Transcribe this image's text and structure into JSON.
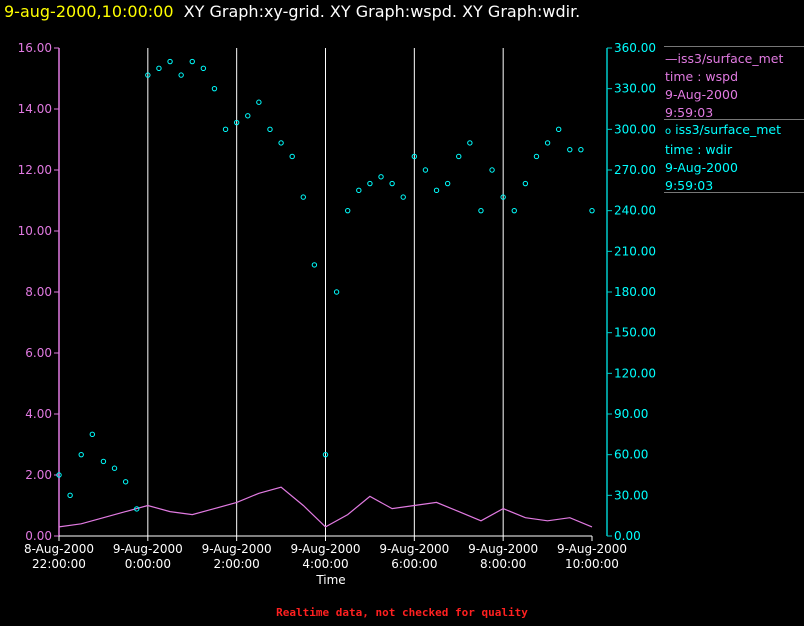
{
  "header": {
    "timestamp": "9-aug-2000,10:00:00",
    "graphs": "XY Graph:xy-grid.  XY Graph:wspd.  XY Graph:wdir."
  },
  "legend": {
    "wspd": {
      "name": "iss3/surface_met",
      "var": "time : wspd",
      "date": "9-Aug-2000",
      "time": "9:59:03"
    },
    "wdir": {
      "name": "iss3/surface_met",
      "var": "time : wdir",
      "date": "9-Aug-2000",
      "time": "9:59:03"
    }
  },
  "footnote": "Realtime data, not checked for quality",
  "chart_data": {
    "type": "scatter",
    "xlabel": "Time",
    "x_ticks": [
      {
        "date": "8-Aug-2000",
        "time": "22:00:00"
      },
      {
        "date": "9-Aug-2000",
        "time": "0:00:00"
      },
      {
        "date": "9-Aug-2000",
        "time": "2:00:00"
      },
      {
        "date": "9-Aug-2000",
        "time": "4:00:00"
      },
      {
        "date": "9-Aug-2000",
        "time": "6:00:00"
      },
      {
        "date": "9-Aug-2000",
        "time": "8:00:00"
      },
      {
        "date": "9-Aug-2000",
        "time": "10:00:00"
      }
    ],
    "xlim": [
      "2000-08-08T22:00:00",
      "2000-08-09T10:00:00"
    ],
    "grid_x": true,
    "y_left": {
      "ylim": [
        0,
        16
      ],
      "ticks": [
        "0.00",
        "2.00",
        "4.00",
        "6.00",
        "8.00",
        "10.00",
        "12.00",
        "14.00",
        "16.00"
      ]
    },
    "y_right": {
      "ylim": [
        0,
        360
      ],
      "ticks": [
        "0.00",
        "30.00",
        "60.00",
        "90.00",
        "120.00",
        "150.00",
        "180.00",
        "210.00",
        "240.00",
        "270.00",
        "300.00",
        "330.00",
        "360.00"
      ]
    },
    "series": [
      {
        "name": "time : wspd",
        "axis": "left",
        "style": "line",
        "color": "#e17ae1",
        "x": [
          "2000-08-08T22:00:00",
          "2000-08-08T22:30:00",
          "2000-08-08T23:00:00",
          "2000-08-08T23:30:00",
          "2000-08-09T00:00:00",
          "2000-08-09T00:30:00",
          "2000-08-09T01:00:00",
          "2000-08-09T01:30:00",
          "2000-08-09T02:00:00",
          "2000-08-09T02:30:00",
          "2000-08-09T03:00:00",
          "2000-08-09T03:30:00",
          "2000-08-09T04:00:00",
          "2000-08-09T04:30:00",
          "2000-08-09T05:00:00",
          "2000-08-09T05:30:00",
          "2000-08-09T06:00:00",
          "2000-08-09T06:30:00",
          "2000-08-09T07:00:00",
          "2000-08-09T07:30:00",
          "2000-08-09T08:00:00",
          "2000-08-09T08:30:00",
          "2000-08-09T09:00:00",
          "2000-08-09T09:30:00",
          "2000-08-09T10:00:00"
        ],
        "values": [
          0.3,
          0.4,
          0.6,
          0.8,
          1.0,
          0.8,
          0.7,
          0.9,
          1.1,
          1.4,
          1.6,
          1.0,
          0.3,
          0.7,
          1.3,
          0.9,
          1.0,
          1.1,
          0.8,
          0.5,
          0.9,
          0.6,
          0.5,
          0.6,
          0.3
        ]
      },
      {
        "name": "time : wdir",
        "axis": "right",
        "style": "points",
        "color": "#00ffff",
        "x": [
          "2000-08-08T22:00:00",
          "2000-08-08T22:15:00",
          "2000-08-08T22:30:00",
          "2000-08-08T22:45:00",
          "2000-08-08T23:00:00",
          "2000-08-08T23:15:00",
          "2000-08-08T23:30:00",
          "2000-08-08T23:45:00",
          "2000-08-09T00:00:00",
          "2000-08-09T00:15:00",
          "2000-08-09T00:30:00",
          "2000-08-09T00:45:00",
          "2000-08-09T01:00:00",
          "2000-08-09T01:15:00",
          "2000-08-09T01:30:00",
          "2000-08-09T01:45:00",
          "2000-08-09T02:00:00",
          "2000-08-09T02:15:00",
          "2000-08-09T02:30:00",
          "2000-08-09T02:45:00",
          "2000-08-09T03:00:00",
          "2000-08-09T03:15:00",
          "2000-08-09T03:30:00",
          "2000-08-09T03:45:00",
          "2000-08-09T04:00:00",
          "2000-08-09T04:15:00",
          "2000-08-09T04:30:00",
          "2000-08-09T04:45:00",
          "2000-08-09T05:00:00",
          "2000-08-09T05:15:00",
          "2000-08-09T05:30:00",
          "2000-08-09T05:45:00",
          "2000-08-09T06:00:00",
          "2000-08-09T06:15:00",
          "2000-08-09T06:30:00",
          "2000-08-09T06:45:00",
          "2000-08-09T07:00:00",
          "2000-08-09T07:15:00",
          "2000-08-09T07:30:00",
          "2000-08-09T07:45:00",
          "2000-08-09T08:00:00",
          "2000-08-09T08:15:00",
          "2000-08-09T08:30:00",
          "2000-08-09T08:45:00",
          "2000-08-09T09:00:00",
          "2000-08-09T09:15:00",
          "2000-08-09T09:30:00",
          "2000-08-09T09:45:00",
          "2000-08-09T10:00:00"
        ],
        "values": [
          45,
          30,
          60,
          75,
          55,
          50,
          40,
          20,
          340,
          345,
          350,
          340,
          350,
          345,
          330,
          300,
          305,
          310,
          320,
          300,
          290,
          280,
          250,
          200,
          60,
          180,
          240,
          255,
          260,
          265,
          260,
          250,
          280,
          270,
          255,
          260,
          280,
          290,
          240,
          270,
          250,
          240,
          260,
          280,
          290,
          300,
          285,
          285,
          240
        ]
      }
    ]
  }
}
